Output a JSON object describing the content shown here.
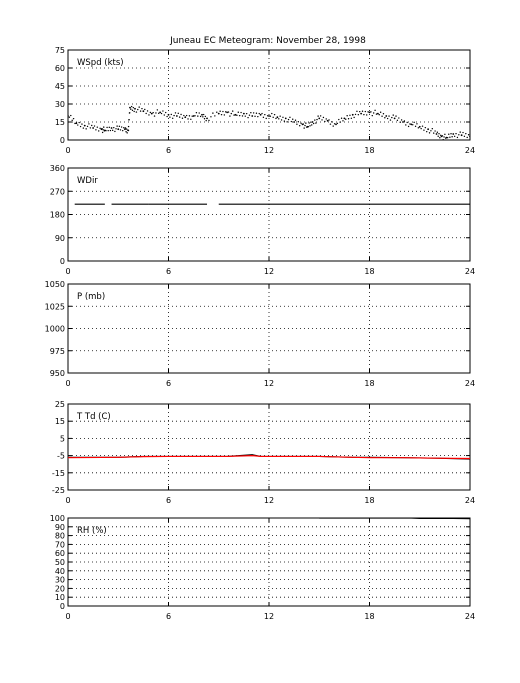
{
  "title": "Juneau EC Meteogram:  November 28, 1998",
  "chart_data": [
    {
      "type": "scatter",
      "label": "WSpd (kts)",
      "ylim": [
        0,
        75
      ],
      "yticks": [
        0,
        15,
        30,
        45,
        60,
        75
      ],
      "ytick_labels": [
        "0",
        "15",
        "30",
        "45",
        "60",
        "75"
      ],
      "xlim": [
        0,
        24
      ],
      "xticks": [
        0,
        6,
        12,
        18,
        24
      ],
      "xtick_labels": [
        "0",
        "6",
        "12",
        "18",
        "24"
      ],
      "grid": true,
      "series": [
        {
          "color": "#000000",
          "x": [
            0.0,
            0.5,
            1.0,
            1.5,
            2.0,
            2.2,
            2.6,
            3.0,
            3.4,
            3.6,
            3.7,
            4.0,
            4.5,
            5.0,
            5.5,
            6.0,
            6.5,
            7.0,
            7.5,
            8.0,
            8.3,
            9.0,
            9.5,
            10.0,
            10.5,
            11.0,
            11.5,
            12.0,
            12.5,
            13.0,
            13.5,
            14.0,
            14.3,
            14.6,
            15.0,
            15.5,
            16.0,
            16.5,
            17.0,
            17.5,
            18.0,
            18.5,
            19.0,
            19.5,
            20.0,
            20.5,
            21.0,
            21.5,
            22.0,
            22.3,
            22.6,
            23.0,
            23.5,
            24.0
          ],
          "y": [
            20,
            14,
            12,
            10,
            9,
            8,
            10,
            9,
            9,
            8,
            27,
            26,
            24,
            22,
            23,
            21,
            20,
            19,
            20,
            21,
            18,
            22,
            23,
            21,
            22,
            20,
            21,
            20,
            19,
            18,
            15,
            13,
            11,
            15,
            18,
            16,
            13,
            18,
            21,
            22,
            23,
            22,
            20,
            18,
            15,
            13,
            11,
            9,
            5,
            3,
            2,
            5,
            4,
            3
          ]
        }
      ]
    },
    {
      "type": "line",
      "label": "WDir",
      "ylim": [
        0,
        360
      ],
      "yticks": [
        0,
        90,
        180,
        270,
        360
      ],
      "ytick_labels": [
        "0",
        "90",
        "180",
        "270",
        "360"
      ],
      "xlim": [
        0,
        24
      ],
      "xticks": [
        0,
        6,
        12,
        18,
        24
      ],
      "xtick_labels": [
        "0",
        "6",
        "12",
        "18",
        "24"
      ],
      "grid": true,
      "series": [
        {
          "color": "#000000",
          "segments": [
            [
              0.4,
              2.2
            ],
            [
              2.6,
              4.8
            ],
            [
              4.8,
              8.3
            ],
            [
              9.0,
              24.0
            ]
          ],
          "value": 220
        }
      ]
    },
    {
      "type": "line",
      "label": "P (mb)",
      "ylim": [
        950,
        1050
      ],
      "yticks": [
        950,
        975,
        1000,
        1025,
        1050
      ],
      "ytick_labels": [
        "950",
        "975",
        "1000",
        "1025",
        "1050"
      ],
      "xlim": [
        0,
        24
      ],
      "xticks": [
        0,
        6,
        12,
        18,
        24
      ],
      "xtick_labels": [
        "0",
        "6",
        "12",
        "18",
        "24"
      ],
      "grid": true,
      "series": []
    },
    {
      "type": "line",
      "label": "T Td (C)",
      "ylim": [
        -25,
        25
      ],
      "yticks": [
        -25,
        -15,
        -5,
        5,
        15,
        25
      ],
      "ytick_labels": [
        "-25",
        "-15",
        "-5",
        "5",
        "15",
        "25"
      ],
      "xlim": [
        0,
        24
      ],
      "xticks": [
        0,
        6,
        12,
        18,
        24
      ],
      "xtick_labels": [
        "0",
        "6",
        "12",
        "18",
        "24"
      ],
      "grid": true,
      "series": [
        {
          "color": "#000000",
          "x": [
            0,
            3,
            4.5,
            6,
            9.5,
            11,
            11.5,
            15,
            17,
            18,
            20,
            22,
            24
          ],
          "y": [
            -6,
            -6,
            -5.5,
            -5.5,
            -5.5,
            -4.5,
            -5.5,
            -5.5,
            -6,
            -6,
            -6.2,
            -6.5,
            -7
          ]
        },
        {
          "color": "#ff0000",
          "x": [
            0,
            3,
            4.5,
            6,
            9.5,
            11,
            11.5,
            15,
            17,
            18,
            20,
            22,
            24
          ],
          "y": [
            -6.2,
            -6,
            -5.6,
            -5.5,
            -5.5,
            -5,
            -5.5,
            -5.5,
            -6,
            -6.2,
            -6.2,
            -6.5,
            -6.7
          ]
        }
      ]
    },
    {
      "type": "line",
      "label": "RH (%)",
      "ylim": [
        0,
        100
      ],
      "yticks": [
        0,
        10,
        20,
        30,
        40,
        50,
        60,
        70,
        80,
        90,
        100
      ],
      "ytick_labels": [
        "0",
        "10",
        "20",
        "30",
        "40",
        "50",
        "60",
        "70",
        "80",
        "90",
        "100"
      ],
      "xlim": [
        0,
        24
      ],
      "xticks": [
        0,
        6,
        12,
        18,
        24
      ],
      "xtick_labels": [
        "0",
        "6",
        "12",
        "18",
        "24"
      ],
      "grid": true,
      "series": [
        {
          "color": "#000000",
          "x": [
            15.0,
            15.2,
            20.5,
            21,
            22,
            23,
            24
          ],
          "y": [
            100,
            100,
            100,
            99.5,
            99.5,
            99.5,
            99.3
          ]
        }
      ]
    }
  ]
}
